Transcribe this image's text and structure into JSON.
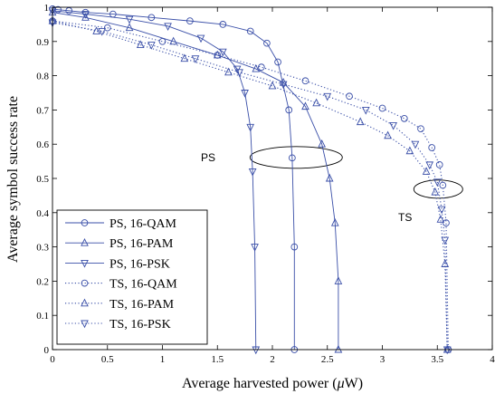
{
  "chart_data": {
    "type": "line",
    "title": "",
    "xlabel": "Average harvested power (",
    "xlabel_mu": "μ",
    "xlabel_unit": "W)",
    "ylabel": "Average symbol success rate",
    "xlim": [
      0,
      4
    ],
    "ylim": [
      0,
      1
    ],
    "xticks": [
      "0",
      "0.5",
      "1",
      "1.5",
      "2",
      "2.5",
      "3",
      "3.5",
      "4"
    ],
    "yticks": [
      "0",
      "0.1",
      "0.2",
      "0.3",
      "0.4",
      "0.5",
      "0.6",
      "0.7",
      "0.8",
      "0.9",
      "1"
    ],
    "grid": false,
    "legend_position": "bottom-left",
    "colors": {
      "series": "#3a4fa8",
      "axis": "#000000"
    },
    "series": [
      {
        "name": "PS, 16-QAM",
        "marker": "circle",
        "linestyle": "solid",
        "x": [
          0,
          0.05,
          0.15,
          0.3,
          0.55,
          0.9,
          1.25,
          1.55,
          1.8,
          1.95,
          2.05,
          2.15,
          2.18,
          2.2,
          2.2
        ],
        "y": [
          0.995,
          0.993,
          0.99,
          0.985,
          0.98,
          0.97,
          0.96,
          0.95,
          0.93,
          0.895,
          0.84,
          0.7,
          0.56,
          0.3,
          0
        ]
      },
      {
        "name": "PS, 16-PAM",
        "marker": "triangle-up",
        "linestyle": "solid",
        "x": [
          0,
          0.3,
          0.7,
          1.1,
          1.5,
          1.85,
          2.1,
          2.3,
          2.45,
          2.52,
          2.57,
          2.6,
          2.6
        ],
        "y": [
          0.985,
          0.97,
          0.94,
          0.9,
          0.86,
          0.82,
          0.78,
          0.71,
          0.6,
          0.5,
          0.37,
          0.2,
          0
        ]
      },
      {
        "name": "PS, 16-PSK",
        "marker": "triangle-down",
        "linestyle": "solid",
        "x": [
          0,
          0.3,
          0.7,
          1.05,
          1.35,
          1.55,
          1.68,
          1.75,
          1.8,
          1.82,
          1.84,
          1.85
        ],
        "y": [
          0.99,
          0.98,
          0.965,
          0.945,
          0.91,
          0.87,
          0.82,
          0.75,
          0.65,
          0.52,
          0.3,
          0
        ]
      },
      {
        "name": "TS, 16-QAM",
        "marker": "circle",
        "linestyle": "dotted",
        "x": [
          0,
          0.5,
          1.0,
          1.5,
          1.9,
          2.3,
          2.7,
          3.0,
          3.2,
          3.35,
          3.45,
          3.52,
          3.55,
          3.58,
          3.6
        ],
        "y": [
          0.96,
          0.94,
          0.9,
          0.86,
          0.825,
          0.785,
          0.74,
          0.705,
          0.675,
          0.645,
          0.59,
          0.54,
          0.48,
          0.37,
          0
        ]
      },
      {
        "name": "TS, 16-PAM",
        "marker": "triangle-up",
        "linestyle": "dotted",
        "x": [
          0,
          0.4,
          0.8,
          1.2,
          1.6,
          2.0,
          2.4,
          2.8,
          3.05,
          3.25,
          3.4,
          3.48,
          3.53,
          3.57,
          3.59
        ],
        "y": [
          0.96,
          0.93,
          0.89,
          0.85,
          0.81,
          0.77,
          0.72,
          0.665,
          0.625,
          0.58,
          0.52,
          0.46,
          0.38,
          0.25,
          0
        ]
      },
      {
        "name": "TS, 16-PSK",
        "marker": "triangle-down",
        "linestyle": "dotted",
        "x": [
          0,
          0.45,
          0.9,
          1.3,
          1.7,
          2.1,
          2.5,
          2.85,
          3.1,
          3.3,
          3.43,
          3.5,
          3.54,
          3.57,
          3.59
        ],
        "y": [
          0.955,
          0.93,
          0.89,
          0.85,
          0.81,
          0.775,
          0.74,
          0.7,
          0.655,
          0.6,
          0.54,
          0.49,
          0.41,
          0.32,
          0
        ]
      }
    ],
    "annotations": [
      {
        "text": "PS",
        "ellipse_center": [
          2.2,
          0.56
        ]
      },
      {
        "text": "TS",
        "ellipse_center": [
          3.55,
          0.47
        ]
      }
    ]
  }
}
